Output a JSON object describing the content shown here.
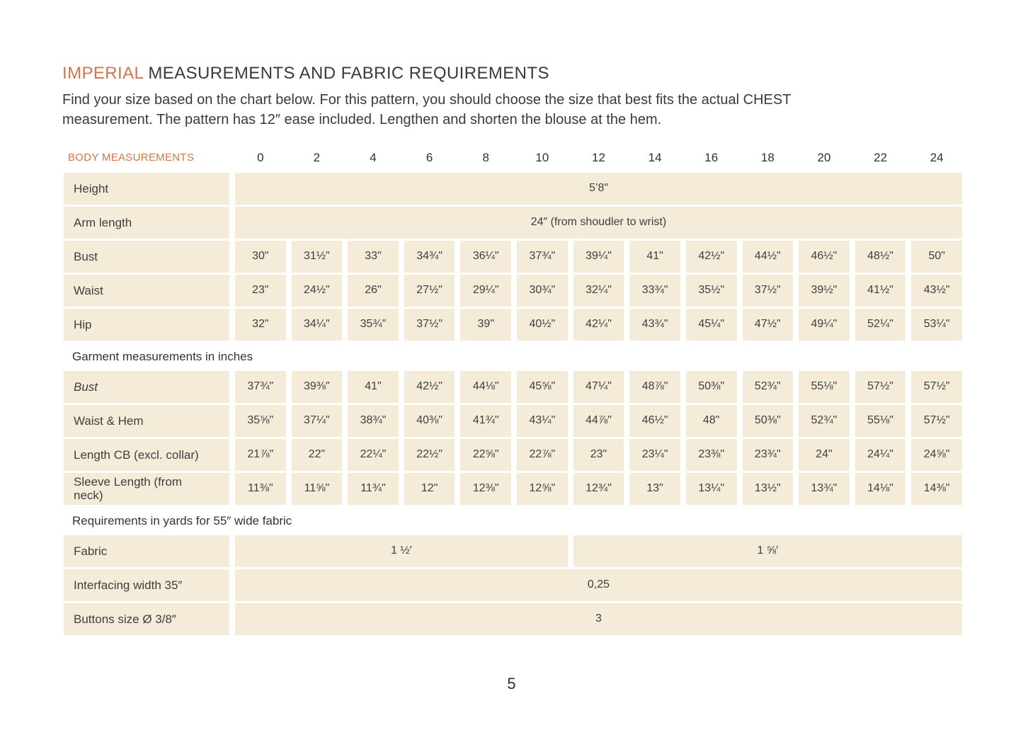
{
  "header": {
    "title_highlight": "IMPERIAL",
    "title_rest": " MEASUREMENTS AND FABRIC REQUIREMENTS",
    "intro": "Find your size based on the chart below. For this pattern, you should choose the size that best fits the actual CHEST\nmeasurement. The pattern has 12″ ease included. Lengthen and shorten the blouse at the hem."
  },
  "table": {
    "header": {
      "label": "BODY MEASUREMENTS",
      "sizes": [
        "0",
        "2",
        "4",
        "6",
        "8",
        "10",
        "12",
        "14",
        "16",
        "18",
        "20",
        "22",
        "24"
      ]
    },
    "rows": [
      {
        "kind": "span",
        "label": "Height",
        "value": "5’8″"
      },
      {
        "kind": "span",
        "label": "Arm length",
        "value": "24″ (from shoudler to wrist)"
      },
      {
        "kind": "cells",
        "label": "Bust",
        "values": [
          "30\"",
          "31½\"",
          "33\"",
          "34¾\"",
          "36¼\"",
          "37¾\"",
          "39¼\"",
          "41\"",
          "42½\"",
          "44½\"",
          "46½\"",
          "48½\"",
          "50\""
        ]
      },
      {
        "kind": "cells",
        "label": "Waist",
        "values": [
          "23\"",
          "24½\"",
          "26\"",
          "27½\"",
          "29¼\"",
          "30¾\"",
          "32¼\"",
          "33¾\"",
          "35½\"",
          "37½\"",
          "39½\"",
          "41½\"",
          "43½\""
        ]
      },
      {
        "kind": "cells",
        "label": "Hip",
        "values": [
          "32\"",
          "34¼\"",
          "35¾\"",
          "37½\"",
          "39\"",
          "40½\"",
          "42¼\"",
          "43¾\"",
          "45¼\"",
          "47½\"",
          "49¼\"",
          "52¼\"",
          "53¼\""
        ]
      },
      {
        "kind": "section",
        "label": "Garment measurements in inches"
      },
      {
        "kind": "cells",
        "label": "Bust",
        "italic": true,
        "values": [
          "37¾\"",
          "39⅜\"",
          "41\"",
          "42½\"",
          "44⅛\"",
          "45⅝\"",
          "47¼\"",
          "48⅞\"",
          "50⅜\"",
          "52¾\"",
          "55⅛\"",
          "57½\"",
          "57½\""
        ]
      },
      {
        "kind": "cells",
        "label": "Waist & Hem",
        "values": [
          "35⅝\"",
          "37¼\"",
          "38¾\"",
          "40⅜\"",
          "41¾\"",
          "43¼\"",
          "44⅞\"",
          "46½\"",
          "48\"",
          "50⅜\"",
          "52¾\"",
          "55⅛\"",
          "57½\""
        ]
      },
      {
        "kind": "cells",
        "label": "Length CB (excl. collar)",
        "values": [
          "21⅞\"",
          "22\"",
          "22¼\"",
          "22½\"",
          "22⅝\"",
          "22⅞\"",
          "23\"",
          "23¼\"",
          "23⅜\"",
          "23¾\"",
          "24\"",
          "24¼\"",
          "24⅝\""
        ]
      },
      {
        "kind": "cells",
        "label": "Sleeve Length (from\nneck)",
        "values": [
          "11⅜\"",
          "11⅝\"",
          "11¾\"",
          "12\"",
          "12⅜\"",
          "12⅝\"",
          "12¾\"",
          "13\"",
          "13¼\"",
          "13½\"",
          "13¾\"",
          "14⅛\"",
          "14⅜\""
        ]
      },
      {
        "kind": "section",
        "label": "Requirements in yards for 55″ wide fabric"
      },
      {
        "kind": "split",
        "label": "Fabric",
        "left": "1 ½′",
        "left_span": 6,
        "right": "1 ⅝′",
        "right_span": 7
      },
      {
        "kind": "span",
        "label": "Interfacing width 35″",
        "value": "0,25"
      },
      {
        "kind": "span",
        "label": "Buttons size Ø 3/8″",
        "value": "3"
      }
    ]
  },
  "footer": {
    "page_number": "5"
  },
  "colors": {
    "accent": "#cf764d",
    "cell_bg": "#f4ebd9",
    "text": "#3d3d3d"
  }
}
